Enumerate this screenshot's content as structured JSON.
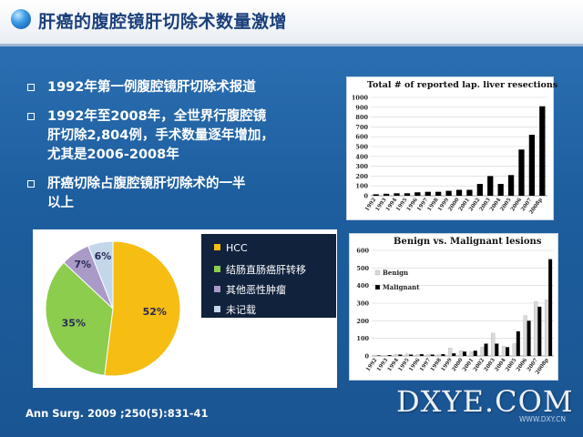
{
  "slide": {
    "title": "肝癌的腹腔镜肝切除术数量激增",
    "bullets": [
      {
        "lines": [
          "1992年第一例腹腔镜肝切除术报道"
        ]
      },
      {
        "lines": [
          "1992年至2008年，全世界行腹腔镜",
          "肝切除2,804例，手术数量逐年增加，",
          "尤其是2006-2008年"
        ]
      },
      {
        "lines": [
          "肝癌切除占腹腔镜肝切除术的一半",
          "以上"
        ]
      }
    ],
    "citation": "Ann Surg. 2009 ;250(5):831-41",
    "watermark": "DXYE.COM",
    "watermark_url": "WWW.DXY.CN"
  },
  "chart_data": [
    {
      "type": "bar",
      "title": "Total # of reported lap. liver resections",
      "categories": [
        "1992",
        "1993",
        "1994",
        "1995",
        "1996",
        "1997",
        "1998",
        "1999",
        "2000",
        "2001",
        "2002",
        "2003",
        "2004",
        "2005",
        "2006",
        "2007",
        "2008p"
      ],
      "values": [
        15,
        20,
        25,
        25,
        35,
        40,
        40,
        50,
        60,
        60,
        120,
        200,
        120,
        210,
        470,
        620,
        910
      ],
      "ylim": [
        0,
        1000
      ],
      "yticks": [
        0,
        100,
        200,
        300,
        400,
        500,
        600,
        700,
        800,
        900,
        1000
      ],
      "grid": true,
      "colors": {
        "bar": "#000000"
      }
    },
    {
      "type": "bar",
      "title": "Benign vs. Malignant lesions",
      "categories": [
        "1992",
        "1993",
        "1994",
        "1995",
        "1996",
        "1997",
        "1998",
        "1999",
        "2000",
        "2001",
        "2002",
        "2003",
        "2004",
        "2005",
        "2006",
        "2007",
        "2008p"
      ],
      "series": [
        {
          "name": "Benign",
          "values": [
            5,
            3,
            10,
            12,
            8,
            8,
            10,
            45,
            30,
            25,
            50,
            130,
            55,
            70,
            230,
            310,
            320
          ]
        },
        {
          "name": "Malignant",
          "values": [
            3,
            5,
            8,
            8,
            10,
            8,
            10,
            15,
            25,
            30,
            70,
            70,
            50,
            140,
            200,
            280,
            550
          ]
        }
      ],
      "ylim": [
        0,
        600
      ],
      "yticks": [
        0,
        100,
        200,
        300,
        400,
        500,
        600
      ],
      "legend": "top-left",
      "grid": true,
      "colors": {
        "Benign": "#d9d9d9",
        "Malignant": "#000000"
      }
    },
    {
      "type": "pie",
      "slices": [
        {
          "label": "HCC",
          "value": 52,
          "display": "52%",
          "color": "#f6bd12"
        },
        {
          "label": "结肠直肠癌肝转移",
          "value": 35,
          "display": "35%",
          "color": "#8ccd4d"
        },
        {
          "label": "其他恶性肿瘤",
          "value": 7,
          "display": "7%",
          "color": "#a99ac8"
        },
        {
          "label": "未记载",
          "value": 6,
          "display": "6%",
          "color": "#c3d6ea"
        }
      ],
      "legend": "right"
    }
  ]
}
